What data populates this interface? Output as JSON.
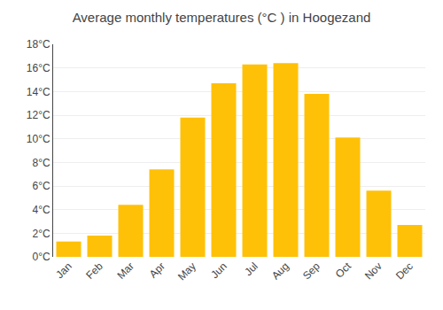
{
  "chart_data": {
    "type": "bar",
    "title": "Average monthly temperatures (°C ) in Hoogezand",
    "categories": [
      "Jan",
      "Feb",
      "Mar",
      "Apr",
      "May",
      "Jun",
      "Jul",
      "Aug",
      "Sep",
      "Oct",
      "Nov",
      "Dec"
    ],
    "values": [
      1.3,
      1.8,
      4.4,
      7.4,
      11.8,
      14.7,
      16.3,
      16.4,
      13.8,
      10.1,
      5.6,
      2.7
    ],
    "color": "#FFC107",
    "ylim": [
      0,
      18
    ],
    "yticks": [
      {
        "value": 0,
        "label": "0°C"
      },
      {
        "value": 2,
        "label": "2°C"
      },
      {
        "value": 4,
        "label": "4°C"
      },
      {
        "value": 6,
        "label": "6°C"
      },
      {
        "value": 8,
        "label": "8°C"
      },
      {
        "value": 10,
        "label": "10°C"
      },
      {
        "value": 12,
        "label": "12°C"
      },
      {
        "value": 14,
        "label": "14°C"
      },
      {
        "value": 16,
        "label": "16°C"
      },
      {
        "value": 18,
        "label": "18°C"
      }
    ],
    "grid": true
  }
}
